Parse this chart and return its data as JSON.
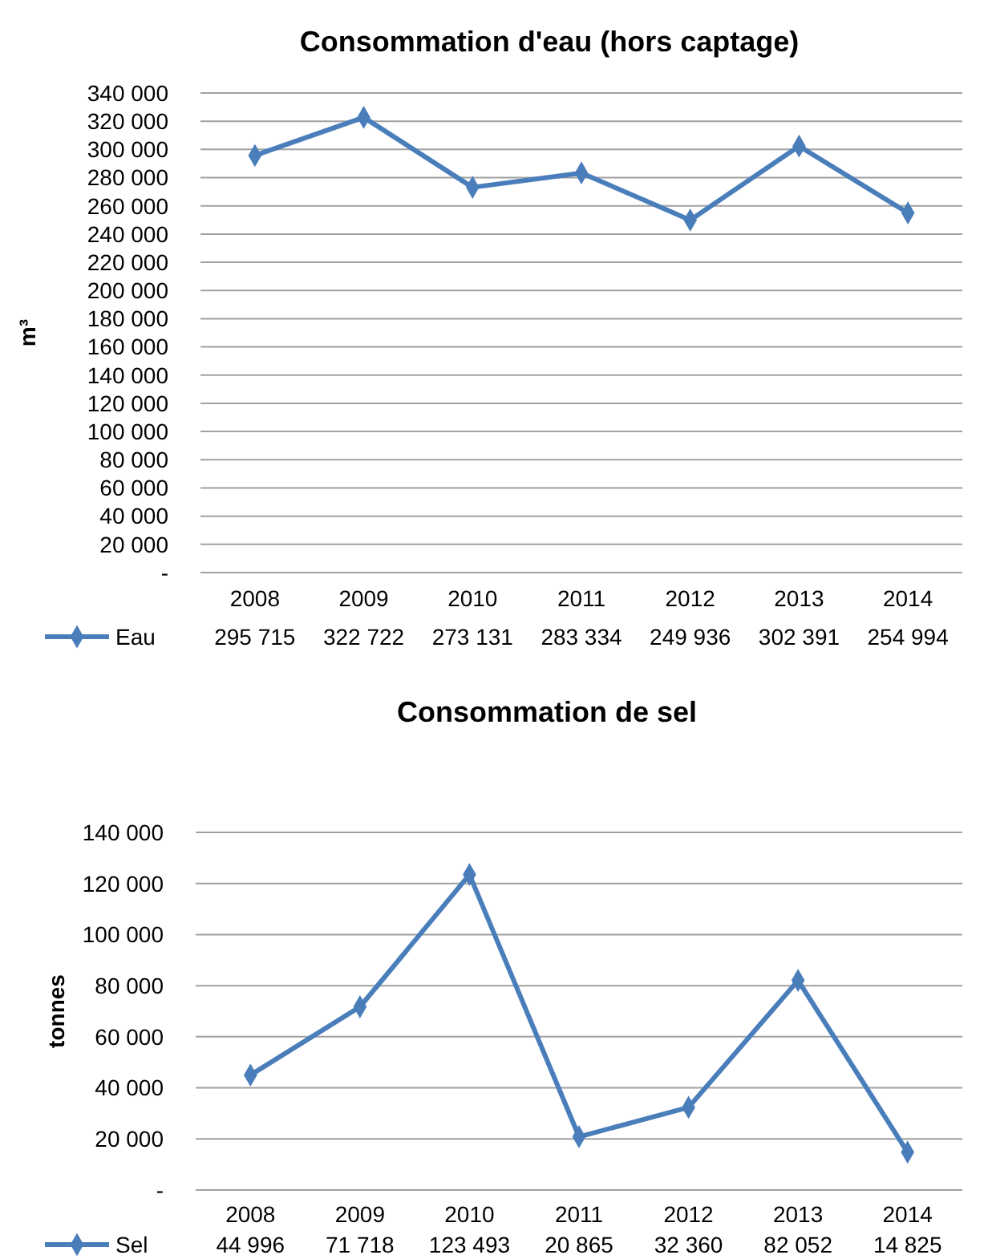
{
  "chart_data": [
    {
      "type": "line",
      "title": "Consommation d'eau (hors captage)",
      "ylabel": "m³",
      "categories": [
        "2008",
        "2009",
        "2010",
        "2011",
        "2012",
        "2013",
        "2014"
      ],
      "series": [
        {
          "name": "Eau",
          "color": "#4a7ebb",
          "values": [
            295715,
            322722,
            273131,
            283334,
            249936,
            302391,
            254994
          ],
          "value_labels": [
            "295 715",
            "322 722",
            "273 131",
            "283 334",
            "249 936",
            "302 391",
            "254 994"
          ]
        }
      ],
      "ylim": [
        0,
        340000
      ],
      "yticks": [
        {
          "value": 0,
          "label": "-"
        },
        {
          "value": 20000,
          "label": "20 000"
        },
        {
          "value": 40000,
          "label": "40 000"
        },
        {
          "value": 60000,
          "label": "60 000"
        },
        {
          "value": 80000,
          "label": "80 000"
        },
        {
          "value": 100000,
          "label": "100 000"
        },
        {
          "value": 120000,
          "label": "120 000"
        },
        {
          "value": 140000,
          "label": "140 000"
        },
        {
          "value": 160000,
          "label": "160 000"
        },
        {
          "value": 180000,
          "label": "180 000"
        },
        {
          "value": 200000,
          "label": "200 000"
        },
        {
          "value": 220000,
          "label": "220 000"
        },
        {
          "value": 240000,
          "label": "240 000"
        },
        {
          "value": 260000,
          "label": "260 000"
        },
        {
          "value": 280000,
          "label": "280 000"
        },
        {
          "value": 300000,
          "label": "300 000"
        },
        {
          "value": 320000,
          "label": "320 000"
        },
        {
          "value": 340000,
          "label": "340 000"
        }
      ],
      "grid": "y",
      "legend": "bottom",
      "marker": "diamond",
      "line_style": "solid"
    },
    {
      "type": "line",
      "title": "Consommation de sel",
      "ylabel": "tonnes",
      "categories": [
        "2008",
        "2009",
        "2010",
        "2011",
        "2012",
        "2013",
        "2014"
      ],
      "series": [
        {
          "name": "Sel",
          "color": "#4a7ebb",
          "values": [
            44996,
            71718,
            123493,
            20865,
            32360,
            82052,
            14825
          ],
          "value_labels": [
            "44 996",
            "71 718",
            "123 493",
            "20 865",
            "32 360",
            "82 052",
            "14 825"
          ]
        }
      ],
      "ylim": [
        0,
        140000
      ],
      "yticks": [
        {
          "value": 0,
          "label": "-"
        },
        {
          "value": 20000,
          "label": "20 000"
        },
        {
          "value": 40000,
          "label": "40 000"
        },
        {
          "value": 60000,
          "label": "60 000"
        },
        {
          "value": 80000,
          "label": "80 000"
        },
        {
          "value": 100000,
          "label": "100 000"
        },
        {
          "value": 120000,
          "label": "120 000"
        },
        {
          "value": 140000,
          "label": "140 000"
        }
      ],
      "grid": "y",
      "legend": "bottom",
      "marker": "diamond",
      "line_style": "solid"
    }
  ]
}
